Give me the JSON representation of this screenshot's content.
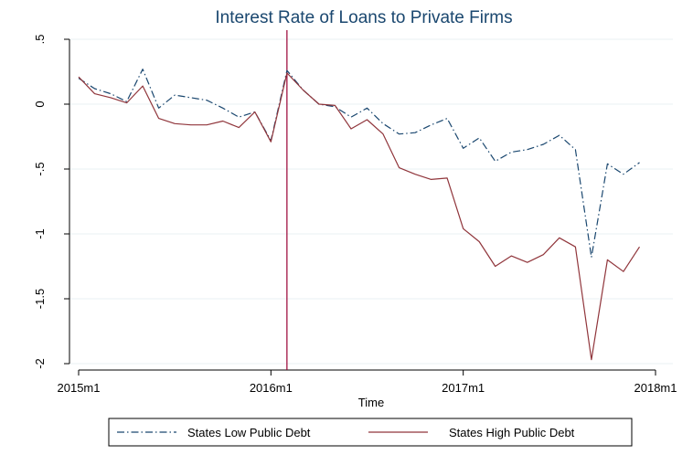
{
  "chart_data": {
    "type": "line",
    "title": "Interest Rate of Loans to Private Firms",
    "xlabel": "Time",
    "ylabel": "",
    "x_ticks": [
      {
        "label": "2015m1",
        "value": 0
      },
      {
        "label": "2016m1",
        "value": 12
      },
      {
        "label": "2017m1",
        "value": 24
      },
      {
        "label": "2018m1",
        "value": 36
      }
    ],
    "y_ticks": [
      {
        "label": ".5",
        "value": 0.5
      },
      {
        "label": "0",
        "value": 0
      },
      {
        "label": "-.5",
        "value": -0.5
      },
      {
        "label": "-1",
        "value": -1
      },
      {
        "label": "-1.5",
        "value": -1.5
      },
      {
        "label": "-2",
        "value": -2
      }
    ],
    "xlim": [
      0,
      36
    ],
    "ylim": [
      -2.1,
      0.55
    ],
    "grid": true,
    "legend_position": "bottom",
    "vline": {
      "x": 13,
      "color": "#990033"
    },
    "x": [
      "2015m1",
      "2015m2",
      "2015m3",
      "2015m4",
      "2015m5",
      "2015m6",
      "2015m7",
      "2015m8",
      "2015m9",
      "2015m10",
      "2015m11",
      "2015m12",
      "2016m1",
      "2016m2",
      "2016m3",
      "2016m4",
      "2016m5",
      "2016m6",
      "2016m7",
      "2016m8",
      "2016m9",
      "2016m10",
      "2016m11",
      "2016m12",
      "2017m1",
      "2017m2",
      "2017m3",
      "2017m4",
      "2017m5",
      "2017m6",
      "2017m7",
      "2017m8",
      "2017m9",
      "2017m10",
      "2017m11",
      "2017m12"
    ],
    "series": [
      {
        "name": "States Low Public Debt",
        "color": "#1a476f",
        "dash": "dash-dot",
        "values": [
          0.2,
          0.12,
          0.08,
          0.02,
          0.27,
          -0.03,
          0.07,
          0.05,
          0.03,
          -0.03,
          -0.1,
          -0.06,
          -0.28,
          0.26,
          0.11,
          0.0,
          -0.02,
          -0.1,
          -0.03,
          -0.15,
          -0.23,
          -0.22,
          -0.16,
          -0.11,
          -0.34,
          -0.26,
          -0.44,
          -0.37,
          -0.35,
          -0.31,
          -0.24,
          -0.35,
          -1.18,
          -0.46,
          -0.54,
          -0.45
        ]
      },
      {
        "name": "States High Public Debt",
        "color": "#90353b",
        "dash": "solid",
        "values": [
          0.21,
          0.08,
          0.05,
          0.01,
          0.14,
          -0.11,
          -0.15,
          -0.16,
          -0.16,
          -0.13,
          -0.18,
          -0.06,
          -0.29,
          0.24,
          0.11,
          0.0,
          -0.01,
          -0.19,
          -0.12,
          -0.23,
          -0.49,
          -0.54,
          -0.58,
          -0.57,
          -0.96,
          -1.06,
          -1.25,
          -1.17,
          -1.22,
          -1.16,
          -1.03,
          -1.1,
          -1.97,
          -1.2,
          -1.29,
          -1.1
        ]
      }
    ]
  }
}
